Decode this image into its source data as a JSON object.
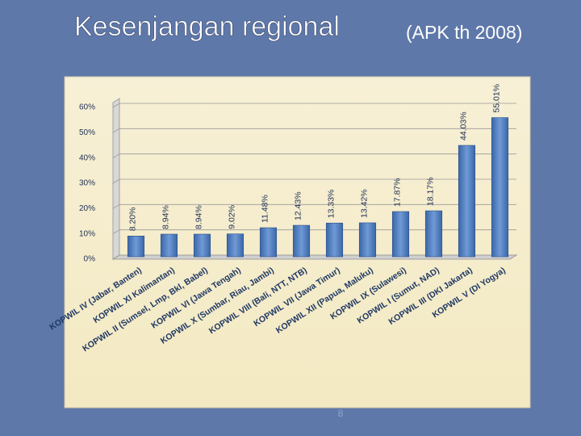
{
  "title": "Kesenjangan regional",
  "subtitle": "(APK th 2008)",
  "page_number": "8",
  "chart_data": {
    "type": "bar",
    "categories": [
      "KOPWIL IV (Jabar, Banten)",
      "KOPWIL XI Kalimantan)",
      "KOPWIL II (Sumsel, Lmp, Bkl, Babel)",
      "KOPWIL VI (Jawa Tengah)",
      "KOPWIL X (Sumbar, Riau, Jambi)",
      "KOPWIL VIII (Bali, NTT, NTB)",
      "KOPWIL VII (Jawa Timur)",
      "KOPWIL XII (Papua, Maluku)",
      "KOPWIL IX (Sulawesi)",
      "KOPWIL I (Sumut, NAD)",
      "KOPWIL III (DKI Jakarta)",
      "KOPWIL V (DI Yogya)"
    ],
    "values": [
      8.2,
      8.94,
      8.94,
      9.02,
      11.48,
      12.43,
      13.33,
      13.42,
      17.87,
      18.17,
      44.03,
      55.01
    ],
    "value_labels": [
      "8.20%",
      "8.94%",
      "8.94%",
      "9.02%",
      "11.48%",
      "12.43%",
      "13.33%",
      "13.42%",
      "17.87%",
      "18.17%",
      "44.03%",
      "55.01%"
    ],
    "color": "#4f81bd",
    "ylim": [
      0,
      60
    ],
    "yticks": [
      {
        "value": 0,
        "label": "0%"
      },
      {
        "value": 10,
        "label": "10%"
      },
      {
        "value": 20,
        "label": "20%"
      },
      {
        "value": 30,
        "label": "30%"
      },
      {
        "value": 40,
        "label": "40%"
      },
      {
        "value": 50,
        "label": "50%"
      },
      {
        "value": 60,
        "label": "60%"
      }
    ],
    "grid": true
  }
}
